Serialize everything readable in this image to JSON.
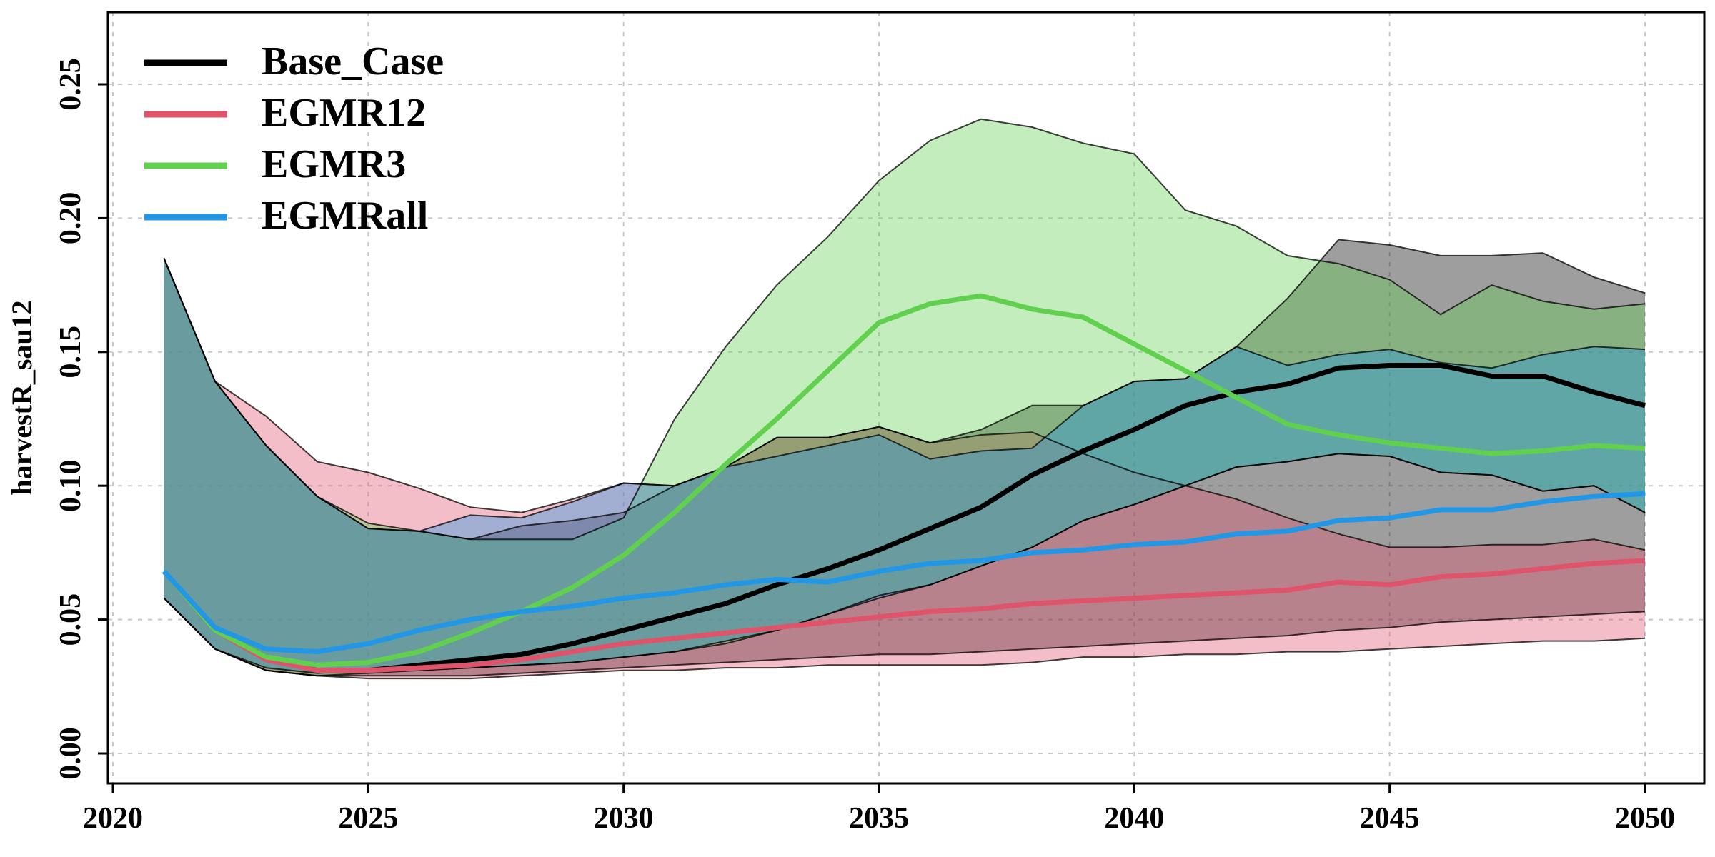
{
  "chart_data": {
    "type": "area",
    "title": "",
    "xlabel": "",
    "ylabel": "harvestR_sau12",
    "xlim": [
      2020,
      2050
    ],
    "ylim": [
      0.0,
      0.27
    ],
    "x_ticks": [
      2020,
      2025,
      2030,
      2035,
      2040,
      2045,
      2050
    ],
    "x_tick_labels": [
      "2020",
      "2025",
      "2030",
      "2035",
      "2040",
      "2045",
      "2050"
    ],
    "y_ticks": [
      0.0,
      0.05,
      0.1,
      0.15,
      0.2,
      0.25
    ],
    "y_tick_labels": [
      "0.00",
      "0.05",
      "0.10",
      "0.15",
      "0.20",
      "0.25"
    ],
    "grid": true,
    "legend_position": "top-left",
    "x": [
      2021,
      2022,
      2023,
      2024,
      2025,
      2026,
      2027,
      2028,
      2029,
      2030,
      2031,
      2032,
      2033,
      2034,
      2035,
      2036,
      2037,
      2038,
      2039,
      2040,
      2041,
      2042,
      2043,
      2044,
      2045,
      2046,
      2047,
      2048,
      2049,
      2050
    ],
    "series": [
      {
        "name": "Base_Case",
        "color": "#000000",
        "fill": "rgba(40,40,40,0.45)",
        "median": [
          0.068,
          0.046,
          0.036,
          0.031,
          0.031,
          0.033,
          0.035,
          0.037,
          0.041,
          0.046,
          0.051,
          0.056,
          0.063,
          0.069,
          0.076,
          0.084,
          0.092,
          0.104,
          0.113,
          0.121,
          0.13,
          0.135,
          0.138,
          0.144,
          0.145,
          0.145,
          0.141,
          0.141,
          0.135,
          0.13
        ],
        "lower": [
          0.058,
          0.039,
          0.031,
          0.029,
          0.029,
          0.029,
          0.029,
          0.03,
          0.031,
          0.032,
          0.033,
          0.034,
          0.035,
          0.036,
          0.037,
          0.037,
          0.038,
          0.039,
          0.04,
          0.041,
          0.042,
          0.043,
          0.044,
          0.046,
          0.047,
          0.049,
          0.05,
          0.051,
          0.052,
          0.053
        ],
        "upper": [
          0.185,
          0.139,
          0.115,
          0.096,
          0.084,
          0.083,
          0.08,
          0.085,
          0.087,
          0.09,
          0.1,
          0.107,
          0.118,
          0.118,
          0.122,
          0.116,
          0.121,
          0.13,
          0.13,
          0.139,
          0.14,
          0.152,
          0.17,
          0.192,
          0.19,
          0.186,
          0.186,
          0.187,
          0.178,
          0.172
        ]
      },
      {
        "name": "EGMR12",
        "color": "#DF536B",
        "fill": "rgba(223,83,107,0.38)",
        "median": [
          0.068,
          0.046,
          0.035,
          0.031,
          0.031,
          0.032,
          0.033,
          0.035,
          0.038,
          0.041,
          0.043,
          0.045,
          0.047,
          0.049,
          0.051,
          0.053,
          0.054,
          0.056,
          0.057,
          0.058,
          0.059,
          0.06,
          0.061,
          0.064,
          0.063,
          0.066,
          0.067,
          0.069,
          0.071,
          0.072
        ],
        "lower": [
          0.058,
          0.039,
          0.031,
          0.029,
          0.028,
          0.028,
          0.028,
          0.029,
          0.03,
          0.031,
          0.031,
          0.032,
          0.032,
          0.033,
          0.033,
          0.033,
          0.033,
          0.034,
          0.036,
          0.036,
          0.037,
          0.037,
          0.038,
          0.038,
          0.039,
          0.04,
          0.041,
          0.042,
          0.042,
          0.043
        ],
        "upper": [
          0.185,
          0.139,
          0.126,
          0.109,
          0.105,
          0.099,
          0.092,
          0.09,
          0.095,
          0.101,
          0.1,
          0.107,
          0.118,
          0.118,
          0.122,
          0.116,
          0.119,
          0.12,
          0.112,
          0.105,
          0.1,
          0.095,
          0.088,
          0.082,
          0.077,
          0.077,
          0.078,
          0.078,
          0.08,
          0.076
        ]
      },
      {
        "name": "EGMR3",
        "color": "#61D04F",
        "fill": "rgba(97,208,79,0.38)",
        "median": [
          0.068,
          0.046,
          0.036,
          0.033,
          0.034,
          0.038,
          0.045,
          0.053,
          0.062,
          0.074,
          0.09,
          0.108,
          0.125,
          0.143,
          0.161,
          0.168,
          0.171,
          0.166,
          0.163,
          0.153,
          0.143,
          0.133,
          0.123,
          0.119,
          0.116,
          0.114,
          0.112,
          0.113,
          0.115,
          0.114
        ],
        "lower": [
          0.058,
          0.039,
          0.031,
          0.029,
          0.03,
          0.031,
          0.032,
          0.033,
          0.034,
          0.036,
          0.038,
          0.041,
          0.046,
          0.052,
          0.059,
          0.063,
          0.07,
          0.077,
          0.087,
          0.093,
          0.1,
          0.107,
          0.109,
          0.112,
          0.111,
          0.105,
          0.104,
          0.098,
          0.1,
          0.09
        ],
        "upper": [
          0.185,
          0.139,
          0.115,
          0.096,
          0.086,
          0.083,
          0.08,
          0.08,
          0.08,
          0.088,
          0.125,
          0.152,
          0.175,
          0.193,
          0.214,
          0.229,
          0.237,
          0.234,
          0.228,
          0.224,
          0.203,
          0.197,
          0.186,
          0.183,
          0.177,
          0.164,
          0.175,
          0.169,
          0.166,
          0.168
        ]
      },
      {
        "name": "EGMRall",
        "color": "#2297E6",
        "fill": "rgba(34,151,230,0.38)",
        "median": [
          0.068,
          0.047,
          0.039,
          0.038,
          0.041,
          0.046,
          0.05,
          0.053,
          0.055,
          0.058,
          0.06,
          0.063,
          0.065,
          0.064,
          0.068,
          0.071,
          0.072,
          0.075,
          0.076,
          0.078,
          0.079,
          0.082,
          0.083,
          0.087,
          0.088,
          0.091,
          0.091,
          0.094,
          0.096,
          0.097
        ],
        "lower": [
          0.058,
          0.039,
          0.032,
          0.03,
          0.031,
          0.031,
          0.032,
          0.033,
          0.034,
          0.036,
          0.038,
          0.042,
          0.046,
          0.052,
          0.058,
          0.063,
          0.07,
          0.077,
          0.087,
          0.093,
          0.1,
          0.107,
          0.109,
          0.112,
          0.111,
          0.105,
          0.104,
          0.098,
          0.1,
          0.09
        ],
        "upper": [
          0.185,
          0.139,
          0.115,
          0.096,
          0.084,
          0.083,
          0.089,
          0.088,
          0.094,
          0.101,
          0.1,
          0.107,
          0.111,
          0.115,
          0.119,
          0.11,
          0.113,
          0.114,
          0.13,
          0.139,
          0.14,
          0.152,
          0.145,
          0.149,
          0.151,
          0.146,
          0.144,
          0.149,
          0.152,
          0.151
        ]
      }
    ]
  }
}
